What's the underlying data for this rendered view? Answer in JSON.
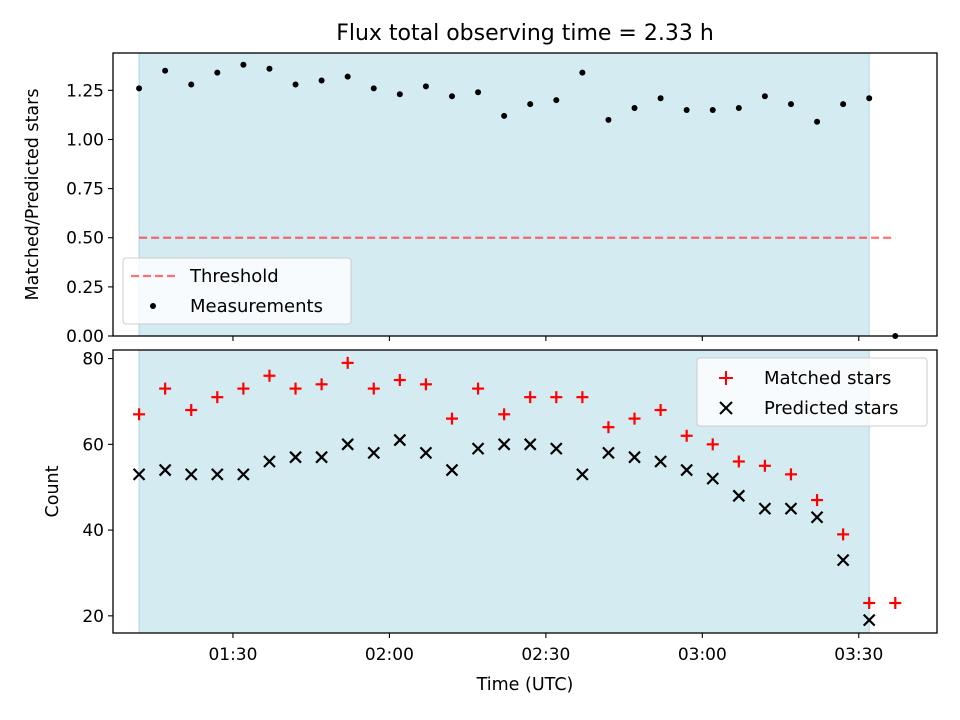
{
  "title": "Flux total observing time = 2.33 h",
  "chart_data": [
    {
      "type": "scatter",
      "ylabel": "Matched/Predicted stars",
      "xlabel": "",
      "xlim": [
        "01:07",
        "03:45"
      ],
      "ylim": [
        0,
        1.44
      ],
      "yticks": [
        0.0,
        0.25,
        0.5,
        0.75,
        1.0,
        1.25
      ],
      "ytick_labels": [
        "0.00",
        "0.25",
        "0.50",
        "0.75",
        "1.00",
        "1.25"
      ],
      "shaded_span": [
        "01:12",
        "03:32"
      ],
      "threshold": {
        "value": 0.5,
        "x_range": [
          "01:12",
          "03:37"
        ]
      },
      "legend": [
        "Threshold",
        "Measurements"
      ],
      "legend_position": "lower-left",
      "series": [
        {
          "name": "Measurements",
          "x": [
            "01:12",
            "01:17",
            "01:22",
            "01:27",
            "01:32",
            "01:37",
            "01:42",
            "01:47",
            "01:52",
            "01:57",
            "02:02",
            "02:07",
            "02:12",
            "02:17",
            "02:22",
            "02:27",
            "02:32",
            "02:37",
            "02:42",
            "02:47",
            "02:52",
            "02:57",
            "03:02",
            "03:07",
            "03:12",
            "03:17",
            "03:22",
            "03:27",
            "03:32",
            "03:37"
          ],
          "values": [
            1.26,
            1.35,
            1.28,
            1.34,
            1.38,
            1.36,
            1.28,
            1.3,
            1.32,
            1.26,
            1.23,
            1.27,
            1.22,
            1.24,
            1.12,
            1.18,
            1.2,
            1.34,
            1.1,
            1.16,
            1.21,
            1.15,
            1.15,
            1.16,
            1.22,
            1.18,
            1.09,
            1.18,
            1.21,
            0.0
          ]
        }
      ]
    },
    {
      "type": "scatter",
      "ylabel": "Count",
      "xlabel": "Time (UTC)",
      "xlim": [
        "01:07",
        "03:45"
      ],
      "ylim": [
        16,
        82
      ],
      "yticks": [
        20,
        40,
        60,
        80
      ],
      "ytick_labels": [
        "20",
        "40",
        "60",
        "80"
      ],
      "xticks": [
        "01:30",
        "02:00",
        "02:30",
        "03:00",
        "03:30"
      ],
      "shaded_span": [
        "01:12",
        "03:32"
      ],
      "legend": [
        "Matched stars",
        "Predicted stars"
      ],
      "legend_position": "upper-right",
      "series": [
        {
          "name": "Matched stars",
          "color": "#ff0000",
          "marker": "plus",
          "x": [
            "01:12",
            "01:17",
            "01:22",
            "01:27",
            "01:32",
            "01:37",
            "01:42",
            "01:47",
            "01:52",
            "01:57",
            "02:02",
            "02:07",
            "02:12",
            "02:17",
            "02:22",
            "02:27",
            "02:32",
            "02:37",
            "02:42",
            "02:47",
            "02:52",
            "02:57",
            "03:02",
            "03:07",
            "03:12",
            "03:17",
            "03:22",
            "03:27",
            "03:32",
            "03:37"
          ],
          "values": [
            67,
            73,
            68,
            71,
            73,
            76,
            73,
            74,
            79,
            73,
            75,
            74,
            66,
            73,
            67,
            71,
            71,
            71,
            64,
            66,
            68,
            62,
            60,
            56,
            55,
            53,
            47,
            39,
            23,
            23
          ]
        },
        {
          "name": "Predicted stars",
          "color": "#000000",
          "marker": "x",
          "x": [
            "01:12",
            "01:17",
            "01:22",
            "01:27",
            "01:32",
            "01:37",
            "01:42",
            "01:47",
            "01:52",
            "01:57",
            "02:02",
            "02:07",
            "02:12",
            "02:17",
            "02:22",
            "02:27",
            "02:32",
            "02:37",
            "02:42",
            "02:47",
            "02:52",
            "02:57",
            "03:02",
            "03:07",
            "03:12",
            "03:17",
            "03:22",
            "03:27",
            "03:32"
          ],
          "values": [
            53,
            54,
            53,
            53,
            53,
            56,
            57,
            57,
            60,
            58,
            61,
            58,
            54,
            59,
            60,
            60,
            59,
            53,
            58,
            57,
            56,
            54,
            52,
            48,
            45,
            45,
            43,
            33,
            19
          ]
        }
      ]
    }
  ],
  "colors": {
    "shade": "#add8e6",
    "threshold": "#ff0000",
    "matched": "#ff0000",
    "predicted": "#000000",
    "measurements": "#000000"
  }
}
